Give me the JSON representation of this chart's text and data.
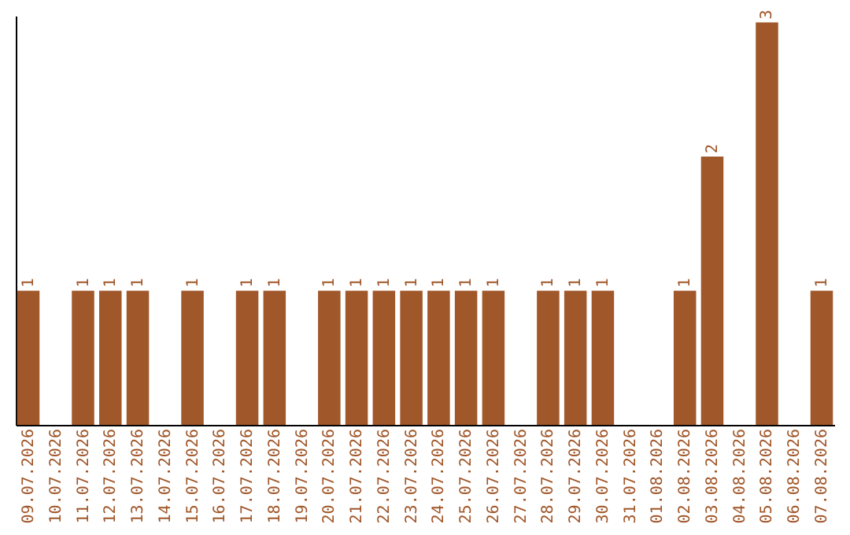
{
  "chart_data": {
    "type": "bar",
    "categories": [
      "09.07.2026",
      "10.07.2026",
      "11.07.2026",
      "12.07.2026",
      "13.07.2026",
      "14.07.2026",
      "15.07.2026",
      "16.07.2026",
      "17.07.2026",
      "18.07.2026",
      "19.07.2026",
      "20.07.2026",
      "21.07.2026",
      "22.07.2026",
      "23.07.2026",
      "24.07.2026",
      "25.07.2026",
      "26.07.2026",
      "27.07.2026",
      "28.07.2026",
      "29.07.2026",
      "30.07.2026",
      "31.07.2026",
      "01.08.2026",
      "02.08.2026",
      "03.08.2026",
      "04.08.2026",
      "05.08.2026",
      "06.08.2026",
      "07.08.2026"
    ],
    "values": [
      1,
      null,
      1,
      1,
      1,
      null,
      1,
      null,
      1,
      1,
      null,
      1,
      1,
      1,
      1,
      1,
      1,
      1,
      null,
      1,
      1,
      1,
      null,
      null,
      1,
      2,
      null,
      3,
      null,
      1
    ],
    "color": "#a0572a",
    "ylim": [
      0,
      3.05
    ],
    "data_labels": true,
    "grid": false,
    "tick_labels": "x"
  }
}
